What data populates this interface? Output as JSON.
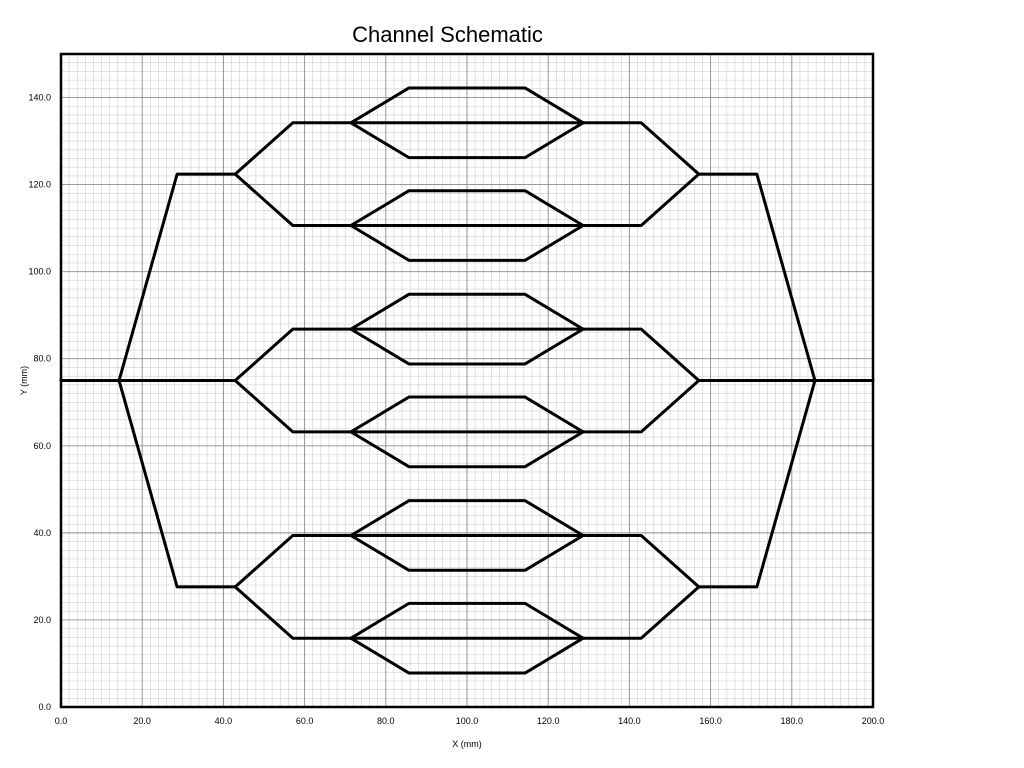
{
  "chart_data": {
    "type": "line",
    "title": "Channel Schematic",
    "xlabel": "X (mm)",
    "ylabel": "Y (mm)",
    "xlim": [
      0,
      200
    ],
    "ylim": [
      0,
      150
    ],
    "xticks": [
      "0.0",
      "20.0",
      "40.0",
      "60.0",
      "80.0",
      "100.0",
      "120.0",
      "140.0",
      "160.0",
      "180.0",
      "200.0"
    ],
    "yticks": [
      "0.0",
      "20.0",
      "40.0",
      "60.0",
      "80.0",
      "100.0",
      "120.0",
      "140.0"
    ],
    "grid": true,
    "line_color": "#000000",
    "series": [
      {
        "values": [
          [
            0,
            75
          ],
          [
            14.3,
            75
          ]
        ]
      },
      {
        "values": [
          [
            185.7,
            75
          ],
          [
            200,
            75
          ]
        ]
      },
      {
        "values": [
          [
            14.3,
            75
          ],
          [
            28.6,
            122.4
          ],
          [
            42.9,
            122.4
          ]
        ]
      },
      {
        "values": [
          [
            14.3,
            75
          ],
          [
            42.9,
            75
          ]
        ]
      },
      {
        "values": [
          [
            14.3,
            75
          ],
          [
            28.6,
            27.6
          ],
          [
            42.9,
            27.6
          ]
        ]
      },
      {
        "values": [
          [
            157.1,
            122.4
          ],
          [
            171.4,
            122.4
          ],
          [
            185.7,
            75
          ]
        ]
      },
      {
        "values": [
          [
            157.1,
            75
          ],
          [
            185.7,
            75
          ]
        ]
      },
      {
        "values": [
          [
            157.1,
            27.6
          ],
          [
            171.4,
            27.6
          ],
          [
            185.7,
            75
          ]
        ]
      },
      {
        "values": [
          [
            42.9,
            122.4
          ],
          [
            57.1,
            134.2
          ],
          [
            71.4,
            134.2
          ]
        ]
      },
      {
        "values": [
          [
            42.9,
            122.4
          ],
          [
            57.1,
            110.6
          ],
          [
            71.4,
            110.6
          ]
        ]
      },
      {
        "values": [
          [
            128.6,
            134.2
          ],
          [
            142.9,
            134.2
          ],
          [
            157.1,
            122.4
          ]
        ]
      },
      {
        "values": [
          [
            128.6,
            110.6
          ],
          [
            142.9,
            110.6
          ],
          [
            157.1,
            122.4
          ]
        ]
      },
      {
        "values": [
          [
            42.9,
            75
          ],
          [
            57.1,
            86.8
          ],
          [
            71.4,
            86.8
          ]
        ]
      },
      {
        "values": [
          [
            42.9,
            75
          ],
          [
            57.1,
            63.2
          ],
          [
            71.4,
            63.2
          ]
        ]
      },
      {
        "values": [
          [
            128.6,
            86.8
          ],
          [
            142.9,
            86.8
          ],
          [
            157.1,
            75
          ]
        ]
      },
      {
        "values": [
          [
            128.6,
            63.2
          ],
          [
            142.9,
            63.2
          ],
          [
            157.1,
            75
          ]
        ]
      },
      {
        "values": [
          [
            42.9,
            27.6
          ],
          [
            57.1,
            39.4
          ],
          [
            71.4,
            39.4
          ]
        ]
      },
      {
        "values": [
          [
            42.9,
            27.6
          ],
          [
            57.1,
            15.8
          ],
          [
            71.4,
            15.8
          ]
        ]
      },
      {
        "values": [
          [
            128.6,
            39.4
          ],
          [
            142.9,
            39.4
          ],
          [
            157.1,
            27.6
          ]
        ]
      },
      {
        "values": [
          [
            128.6,
            15.8
          ],
          [
            142.9,
            15.8
          ],
          [
            157.1,
            27.6
          ]
        ]
      },
      {
        "values": [
          [
            71.4,
            134.2
          ],
          [
            85.7,
            142.2
          ],
          [
            114.3,
            142.2
          ],
          [
            128.6,
            134.2
          ]
        ]
      },
      {
        "values": [
          [
            71.4,
            134.2
          ],
          [
            128.6,
            134.2
          ]
        ]
      },
      {
        "values": [
          [
            71.4,
            134.2
          ],
          [
            85.7,
            126.2
          ],
          [
            114.3,
            126.2
          ],
          [
            128.6,
            134.2
          ]
        ]
      },
      {
        "values": [
          [
            71.4,
            110.6
          ],
          [
            85.7,
            118.6
          ],
          [
            114.3,
            118.6
          ],
          [
            128.6,
            110.6
          ]
        ]
      },
      {
        "values": [
          [
            71.4,
            110.6
          ],
          [
            128.6,
            110.6
          ]
        ]
      },
      {
        "values": [
          [
            71.4,
            110.6
          ],
          [
            85.7,
            102.6
          ],
          [
            114.3,
            102.6
          ],
          [
            128.6,
            110.6
          ]
        ]
      },
      {
        "values": [
          [
            71.4,
            86.8
          ],
          [
            85.7,
            94.8
          ],
          [
            114.3,
            94.8
          ],
          [
            128.6,
            86.8
          ]
        ]
      },
      {
        "values": [
          [
            71.4,
            86.8
          ],
          [
            128.6,
            86.8
          ]
        ]
      },
      {
        "values": [
          [
            71.4,
            86.8
          ],
          [
            85.7,
            78.8
          ],
          [
            114.3,
            78.8
          ],
          [
            128.6,
            86.8
          ]
        ]
      },
      {
        "values": [
          [
            71.4,
            63.2
          ],
          [
            85.7,
            71.2
          ],
          [
            114.3,
            71.2
          ],
          [
            128.6,
            63.2
          ]
        ]
      },
      {
        "values": [
          [
            71.4,
            63.2
          ],
          [
            128.6,
            63.2
          ]
        ]
      },
      {
        "values": [
          [
            71.4,
            63.2
          ],
          [
            85.7,
            55.2
          ],
          [
            114.3,
            55.2
          ],
          [
            128.6,
            63.2
          ]
        ]
      },
      {
        "values": [
          [
            71.4,
            39.4
          ],
          [
            85.7,
            47.4
          ],
          [
            114.3,
            47.4
          ],
          [
            128.6,
            39.4
          ]
        ]
      },
      {
        "values": [
          [
            71.4,
            39.4
          ],
          [
            128.6,
            39.4
          ]
        ]
      },
      {
        "values": [
          [
            71.4,
            39.4
          ],
          [
            85.7,
            31.4
          ],
          [
            114.3,
            31.4
          ],
          [
            128.6,
            39.4
          ]
        ]
      },
      {
        "values": [
          [
            71.4,
            15.8
          ],
          [
            85.7,
            23.8
          ],
          [
            114.3,
            23.8
          ],
          [
            128.6,
            15.8
          ]
        ]
      },
      {
        "values": [
          [
            71.4,
            15.8
          ],
          [
            128.6,
            15.8
          ]
        ]
      },
      {
        "values": [
          [
            71.4,
            15.8
          ],
          [
            85.7,
            7.8
          ],
          [
            114.3,
            7.8
          ],
          [
            128.6,
            15.8
          ]
        ]
      }
    ]
  }
}
